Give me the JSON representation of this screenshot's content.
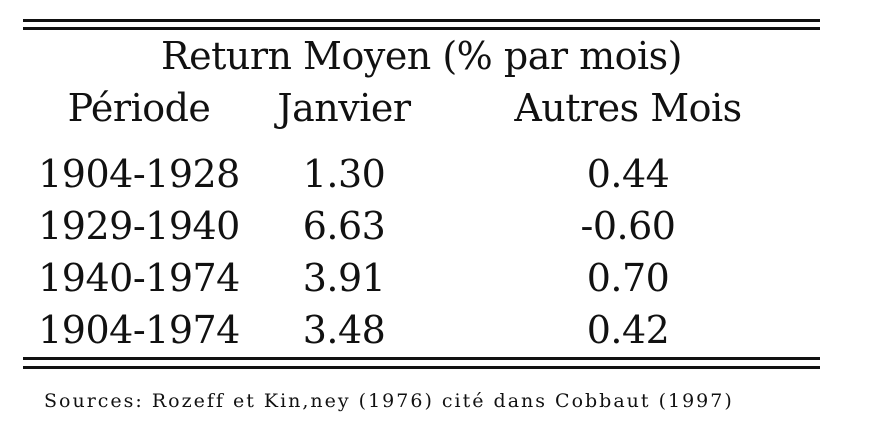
{
  "table": {
    "title": "Return Moyen (% par mois)",
    "headers": [
      "Période",
      "Janvier",
      "Autres Mois"
    ],
    "rows": [
      [
        "1904-1928",
        "1.30",
        "0.44"
      ],
      [
        "1929-1940",
        "6.63",
        "-0.60"
      ],
      [
        "1940-1974",
        "3.91",
        "0.70"
      ],
      [
        "1904-1974",
        "3.48",
        "0.42"
      ]
    ]
  },
  "source_note": "Sources: Rozeff et Kin,ney (1976) cité dans Cobbaut (1997)"
}
